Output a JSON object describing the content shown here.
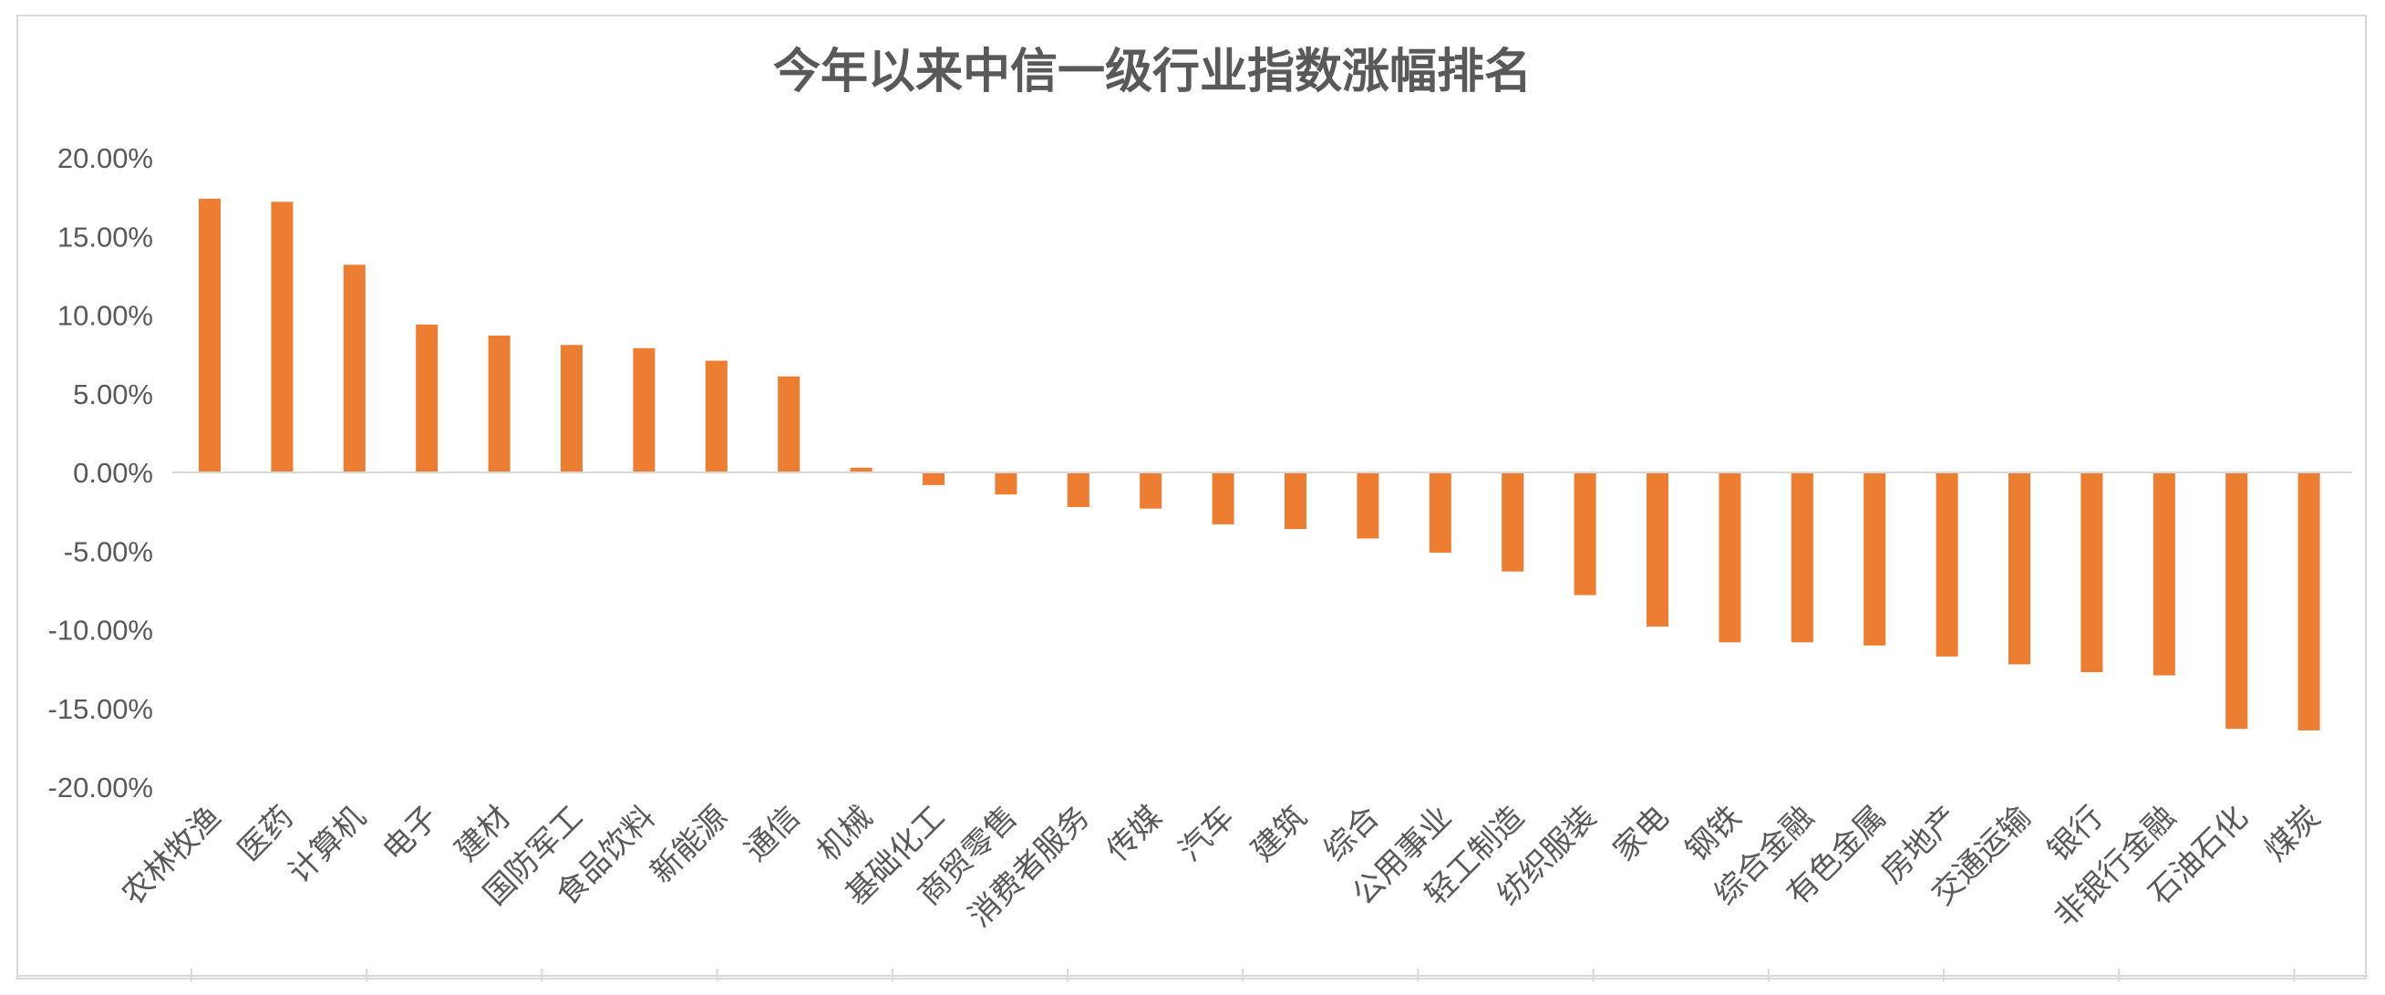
{
  "chart_data": {
    "type": "bar",
    "title": "今年以来中信一级行业指数涨幅排名",
    "xlabel": "",
    "ylabel": "",
    "ylim": [
      -0.2,
      0.2
    ],
    "yticks": [
      0.2,
      0.15,
      0.1,
      0.05,
      0.0,
      -0.05,
      -0.1,
      -0.15,
      -0.2
    ],
    "ytick_labels": [
      "20.00%",
      "15.00%",
      "10.00%",
      "5.00%",
      "0.00%",
      "-5.00%",
      "-10.00%",
      "-15.00%",
      "-20.00%"
    ],
    "grid": false,
    "legend": "none",
    "bar_color": "#ED7D31",
    "axis_color": "#d9d9d9",
    "categories": [
      "农林牧渔",
      "医药",
      "计算机",
      "电子",
      "建材",
      "国防军工",
      "食品饮料",
      "新能源",
      "通信",
      "机械",
      "基础化工",
      "商贸零售",
      "消费者服务",
      "传媒",
      "汽车",
      "建筑",
      "综合",
      "公用事业",
      "轻工制造",
      "纺织服装",
      "家电",
      "钢铁",
      "综合金融",
      "有色金属",
      "房地产",
      "交通运输",
      "银行",
      "非银行金融",
      "石油石化",
      "煤炭"
    ],
    "values": [
      0.174,
      0.172,
      0.132,
      0.094,
      0.087,
      0.081,
      0.079,
      0.071,
      0.061,
      0.003,
      -0.008,
      -0.014,
      -0.022,
      -0.023,
      -0.033,
      -0.036,
      -0.042,
      -0.051,
      -0.063,
      -0.078,
      -0.098,
      -0.108,
      -0.108,
      -0.11,
      -0.117,
      -0.122,
      -0.127,
      -0.129,
      -0.163,
      -0.164
    ]
  }
}
